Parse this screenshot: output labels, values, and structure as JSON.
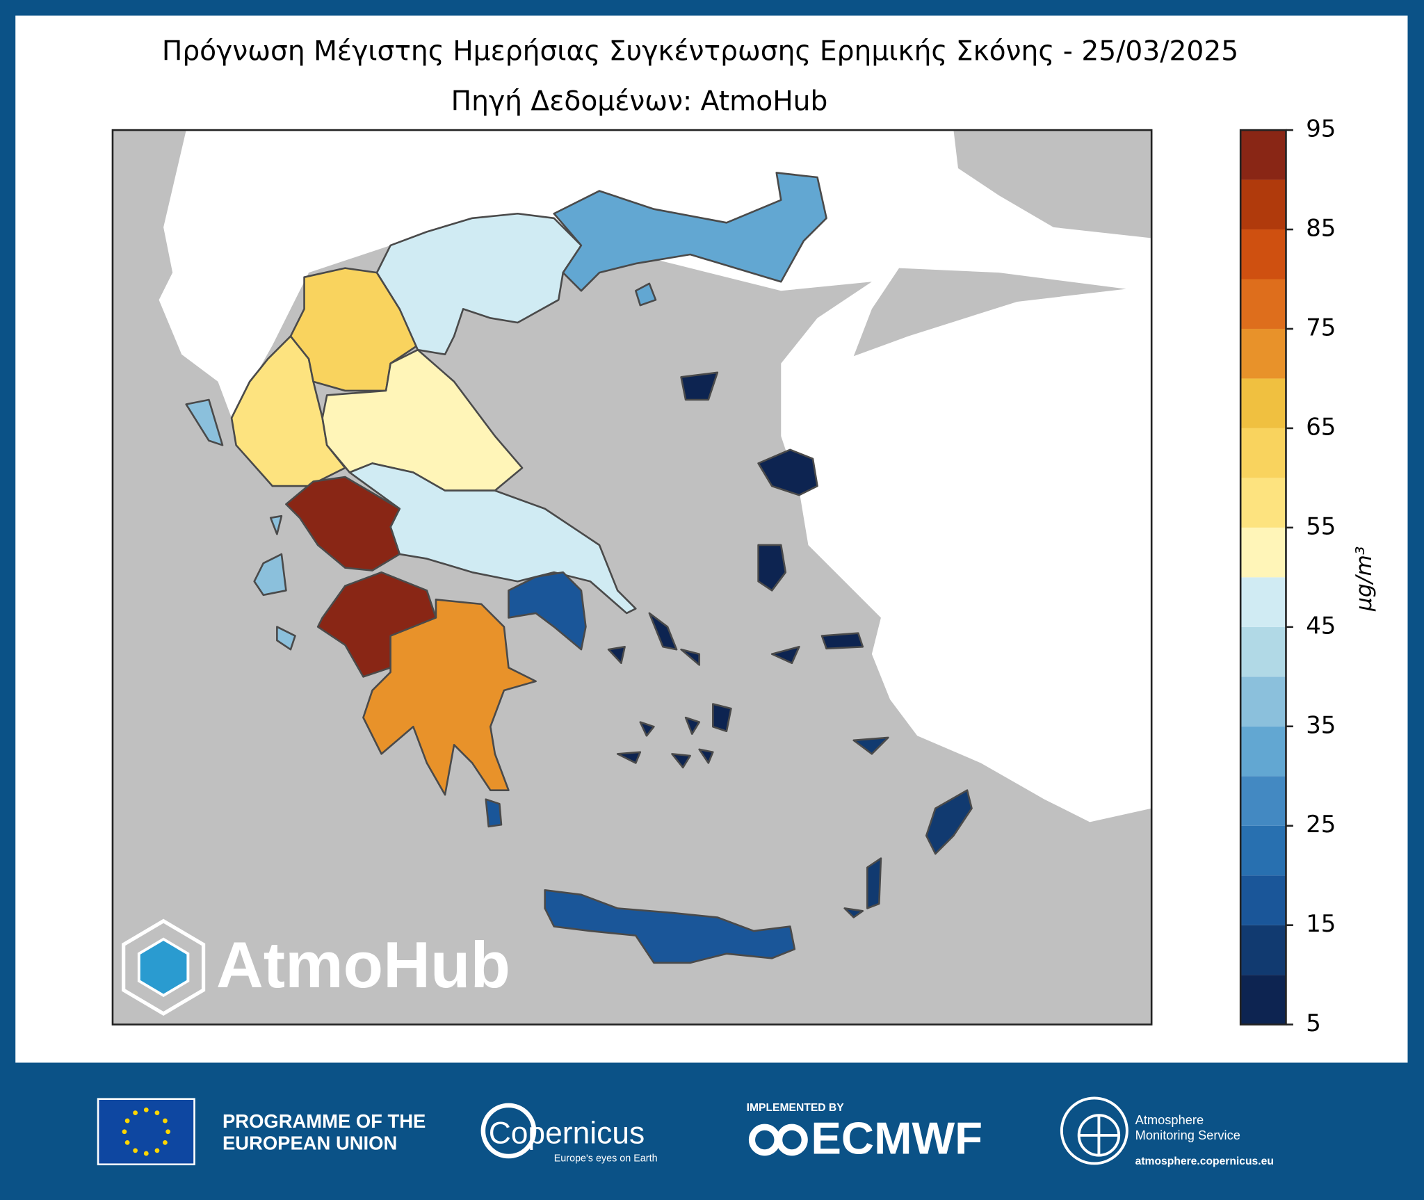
{
  "map": {
    "title": "Πρόγνωση Μέγιστης Ημερήσιας Συγκέντρωσης Ερημικής Σκόνης - 25/03/2025",
    "subtitle": "Πηγή Δεδομένων: AtmoHub",
    "watermark": "AtmoHub",
    "colorbar": {
      "label": "μg/m³",
      "lim": [
        5,
        95
      ],
      "ticks": [
        5,
        15,
        25,
        35,
        45,
        55,
        65,
        75,
        85,
        95
      ],
      "colors": [
        "#0d2451",
        "#113a70",
        "#1a5699",
        "#2870b0",
        "#4389c2",
        "#62a7d2",
        "#8bc0dc",
        "#b1d9e6",
        "#d0ebf3",
        "#fff5b8",
        "#fde37f",
        "#f9d35e",
        "#f0c040",
        "#e8922a",
        "#de6e1c",
        "#cf5010",
        "#b03a0c",
        "#892615"
      ]
    },
    "region_values": [
      57,
      62,
      52,
      47,
      32,
      47,
      92,
      92,
      72,
      17,
      17,
      7,
      12,
      7,
      37
    ]
  },
  "footer": {
    "eu": "PROGRAMME OF THE EUROPEAN UNION",
    "eu_line1": "PROGRAMME OF THE",
    "eu_line2": "EUROPEAN UNION",
    "copernicus": "Copernicus",
    "copernicus_tagline": "Europe's eyes on Earth",
    "implemented_by": "IMPLEMENTED BY",
    "ecmwf": "ECMWF",
    "cams_line1": "Atmosphere",
    "cams_line2": "Monitoring Service",
    "cams_url": "atmosphere.copernicus.eu"
  }
}
